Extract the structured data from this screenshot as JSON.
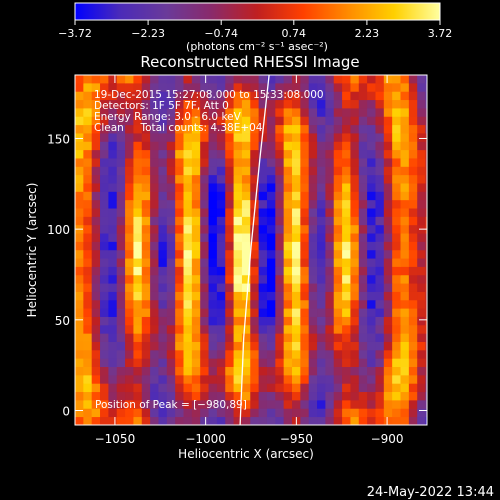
{
  "chart_data": {
    "type": "heatmap",
    "title": "Reconstructed RHESSI Image",
    "xlabel": "Heliocentric X (arcsec)",
    "ylabel": "Heliocentric Y (arcsec)",
    "xlim": [
      -1072,
      -878
    ],
    "ylim": [
      -8,
      185
    ],
    "xticks": [
      -1050,
      -1000,
      -950,
      -900
    ],
    "yticks": [
      0,
      50,
      100,
      150
    ],
    "x_tick_labels": [
      "−1050",
      "−1000",
      "−950",
      "−900"
    ],
    "y_tick_labels": [
      "0",
      "50",
      "100",
      "150"
    ],
    "grid": false,
    "colorbar": {
      "label": "(photons cm⁻² s⁻¹ asec⁻²)",
      "min": -3.72,
      "max": 3.72,
      "ticks": [
        -3.72,
        -2.23,
        -0.74,
        0.74,
        2.23,
        3.72
      ],
      "tick_labels": [
        "−3.72",
        "−2.23",
        "−0.74",
        "0.74",
        "2.23",
        "3.72"
      ],
      "colormap": [
        "#0000ff",
        "#4b2bb8",
        "#6a3a9a",
        "#8a2a6a",
        "#c02020",
        "#ff4000",
        "#ff8c00",
        "#ffd000",
        "#ffffa0"
      ]
    },
    "annotations": [
      "19-Dec-2015 15:27:08.000 to 15:33:08.000",
      "Detectors: 1F 5F 7F, Att 0",
      "Energy Range: 3.0 - 6.0 keV",
      "Clean     Total counts: 4.38E+04"
    ],
    "peak_text": "Position of Peak = [−980,89]",
    "peak": {
      "x": -980,
      "y": 89,
      "value": 3.72
    },
    "limb_curve": [
      [
        -965,
        185
      ],
      [
        -970,
        140
      ],
      [
        -975,
        90
      ],
      [
        -979,
        40
      ],
      [
        -981,
        -8
      ]
    ]
  },
  "footer": {
    "timestamp": "24-May-2022 13:44"
  }
}
